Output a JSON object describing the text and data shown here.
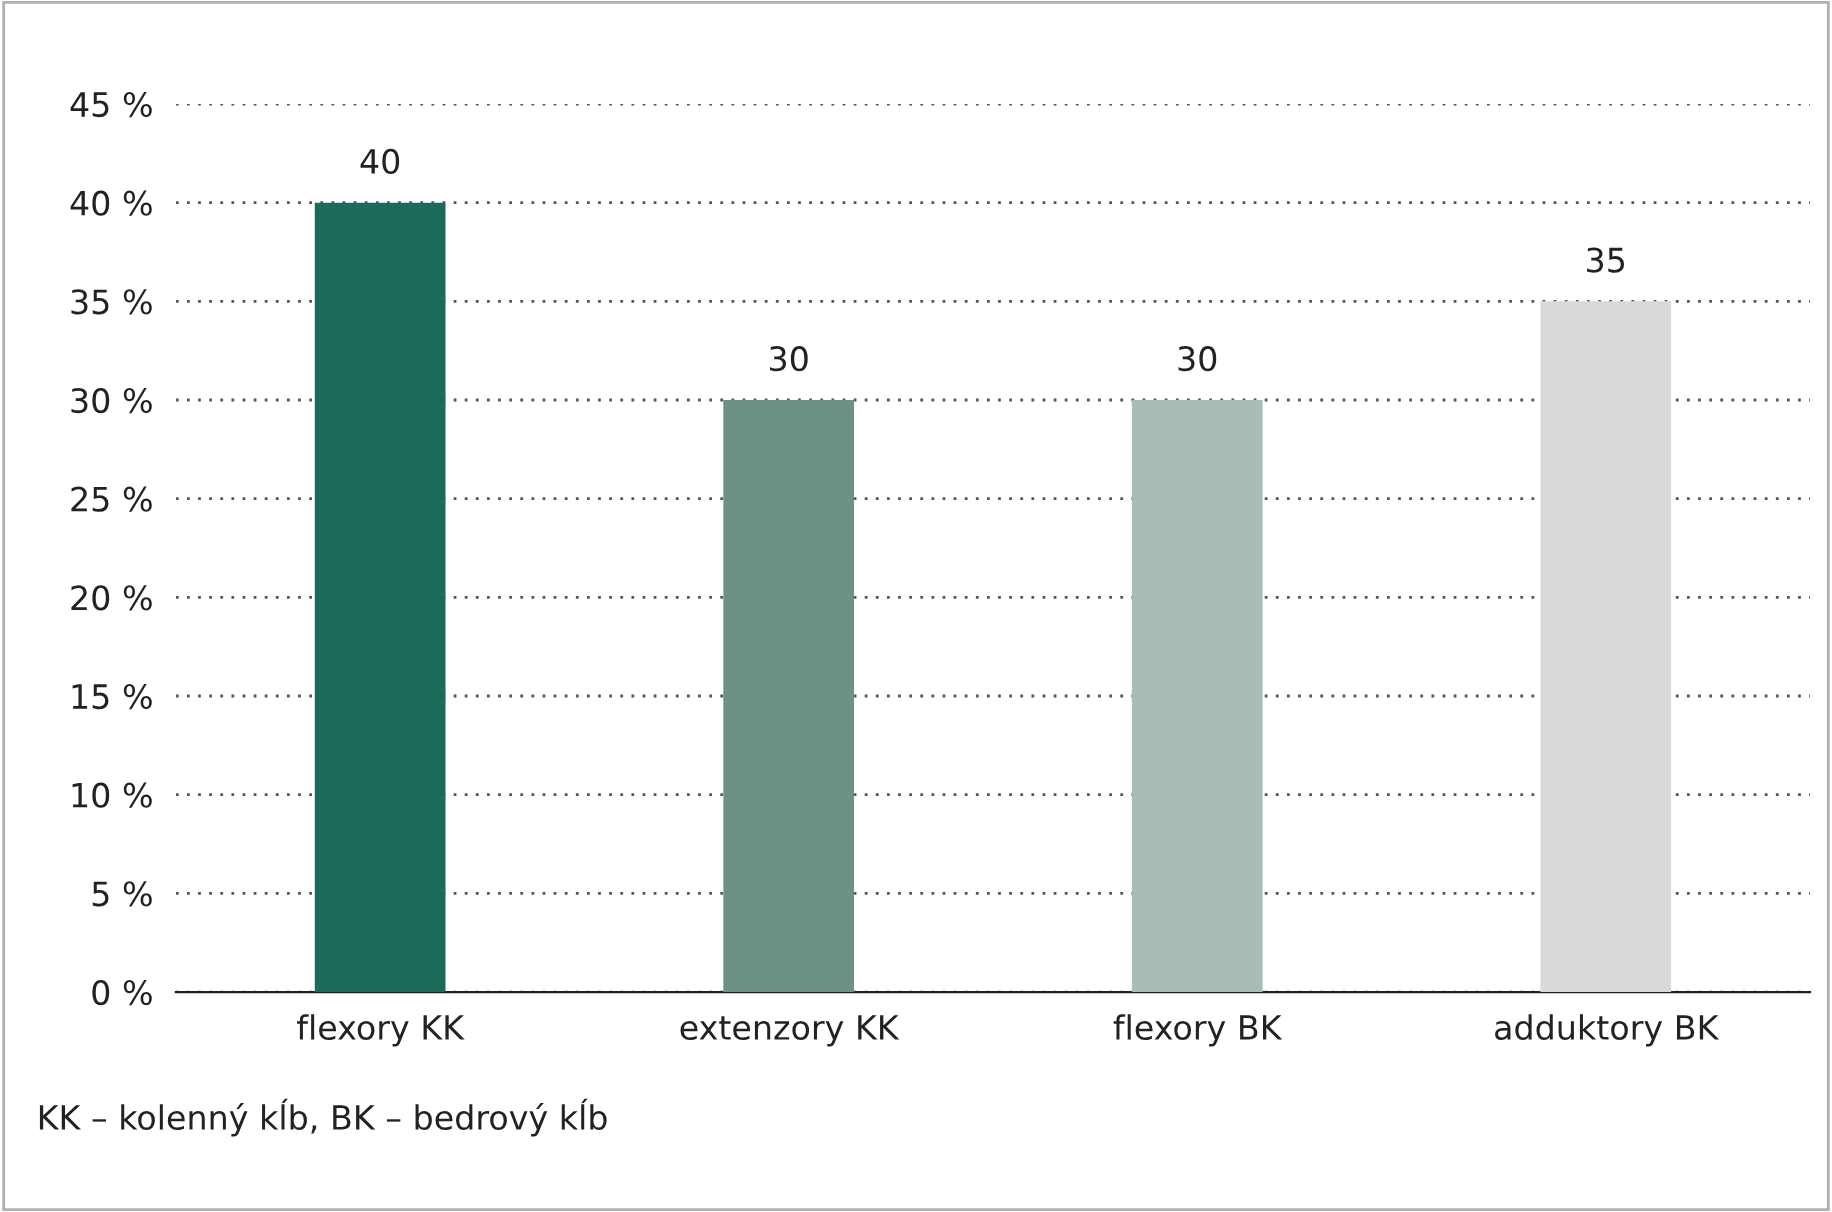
{
  "chart_data": {
    "type": "bar",
    "categories": [
      "flexory KK",
      "extenzory KK",
      "flexory BK",
      "adduktory BK"
    ],
    "values": [
      40,
      30,
      30,
      35
    ],
    "colors": [
      "#1b6b5a",
      "#6b9285",
      "#a9bdb4",
      "#d9d9d9"
    ],
    "ylim": [
      0,
      45
    ],
    "yticks": [
      {
        "value": 0,
        "label": "0 %"
      },
      {
        "value": 5,
        "label": "5 %"
      },
      {
        "value": 10,
        "label": "10 %"
      },
      {
        "value": 15,
        "label": "15 %"
      },
      {
        "value": 20,
        "label": "20 %"
      },
      {
        "value": 25,
        "label": "25 %"
      },
      {
        "value": 30,
        "label": "30 %"
      },
      {
        "value": 35,
        "label": "35 %"
      },
      {
        "value": 40,
        "label": "40 %"
      },
      {
        "value": 45,
        "label": "45 %"
      }
    ],
    "grid": "y",
    "data_labels": true,
    "annotations": [
      "KK – kolenný kĺb, BK – bedrový kĺb"
    ]
  }
}
